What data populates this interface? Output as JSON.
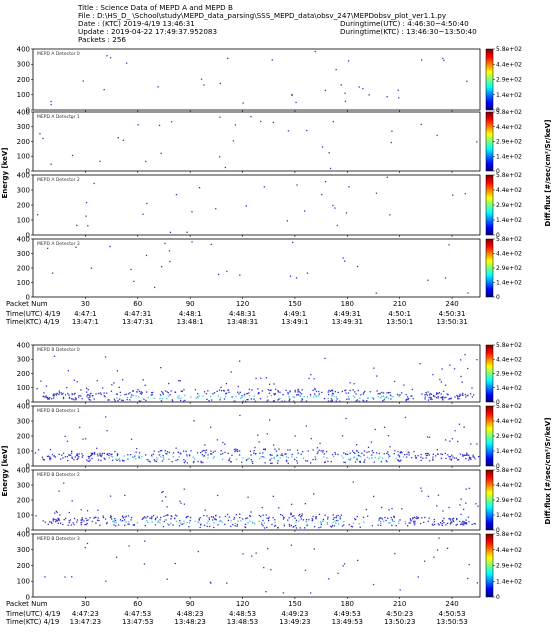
{
  "header": {
    "title": "Title : Science Data of MEPD A and MEPD B",
    "file": "File : D:\\HS_D_ \\School\\study\\MEPD_data_parsing\\SSS_MEPD_data\\obsv_247\\MEPDobsv_plot_ver1.1.py",
    "date": "Date : (KTC) 2019-4/19 13:46:31",
    "duringtime_utc": "Duringtime(UTC) : 4:46:30~4:50:40",
    "update": "Update : 2019-04-22 17:49:37.952083",
    "duringtime_ktc": "Duringtime(KTC) : 13:46:30~13:50:40",
    "packets": "Packets : 256"
  },
  "colors": {
    "colormap": [
      "#00007f",
      "#0000ff",
      "#007fff",
      "#00ffff",
      "#7fff7f",
      "#ffff00",
      "#ff7f00",
      "#ff0000",
      "#7f0000"
    ],
    "point": "#3030d0",
    "core": "#40c0e0"
  },
  "chart_data": {
    "type": "scatter",
    "ylabel": "Energy [keV]",
    "colorbar_label": "Diff.flux [#/sec/cm²/Sr/keV]",
    "colorbar_ticks": [
      "5.8e+02",
      "4.4e+02",
      "2.9e+02",
      "1.4e+02",
      "0"
    ],
    "yticks": [
      "400",
      "300",
      "200",
      "100",
      "0"
    ],
    "ylim": [
      0,
      400
    ],
    "xlim": [
      0,
      256
    ],
    "x_tick_values": [
      30,
      60,
      90,
      120,
      150,
      180,
      210,
      240
    ],
    "groups": [
      {
        "name": "MEPD A",
        "panels": [
          "MEPD A Detector 0",
          "MEPD A Detector 1",
          "MEPD A Detector 2",
          "MEPD A Detector 3"
        ],
        "axis_rows": [
          {
            "label": "Packet Num",
            "ticks": [
              "30",
              "60",
              "90",
              "120",
              "150",
              "180",
              "210",
              "240"
            ]
          },
          {
            "label": "Time(UTC) 4/19",
            "ticks": [
              "4:47:1",
              "4:47:31",
              "4:48:1",
              "4:48:31",
              "4:49:1",
              "4:49:31",
              "4:50:1",
              "4:50:31"
            ]
          },
          {
            "label": "Time(KTC) 4/19",
            "ticks": [
              "13:47:1",
              "13:47:31",
              "13:48:1",
              "13:48:31",
              "13:49:1",
              "13:49:31",
              "13:50:1",
              "13:50:31"
            ]
          }
        ],
        "activity": "sparse",
        "sample_points": [
          {
            "panel": 0,
            "x": 10,
            "y": 60
          },
          {
            "panel": 0,
            "x": 10,
            "y": 40
          },
          {
            "panel": 0,
            "x": 42,
            "y": 360
          },
          {
            "panel": 0,
            "x": 120,
            "y": 50
          },
          {
            "panel": 0,
            "x": 148,
            "y": 100
          },
          {
            "panel": 0,
            "x": 235,
            "y": 330
          },
          {
            "panel": 1,
            "x": 10,
            "y": 50
          },
          {
            "panel": 1,
            "x": 38,
            "y": 70
          },
          {
            "panel": 1,
            "x": 130,
            "y": 340
          },
          {
            "panel": 1,
            "x": 222,
            "y": 320
          },
          {
            "panel": 2,
            "x": 30,
            "y": 130
          },
          {
            "panel": 2,
            "x": 95,
            "y": 320
          },
          {
            "panel": 2,
            "x": 240,
            "y": 270
          },
          {
            "panel": 3,
            "x": 8,
            "y": 340
          },
          {
            "panel": 3,
            "x": 78,
            "y": 250
          }
        ]
      },
      {
        "name": "MEPD B",
        "panels": [
          "MEPD B Detector 0",
          "MEPD B Detector 1",
          "MEPD B Detector 2",
          "MEPD B Detector 3"
        ],
        "axis_rows": [
          {
            "label": "Packet Num",
            "ticks": [
              "30",
              "60",
              "90",
              "120",
              "150",
              "180",
              "210",
              "240"
            ]
          },
          {
            "label": "Time(UTC) 4/19",
            "ticks": [
              "4:47:23",
              "4:47:53",
              "4:48:23",
              "4:48:53",
              "4:49:23",
              "4:49:53",
              "4:50:23",
              "4:50:53"
            ]
          },
          {
            "label": "Time(KTC) 4/19",
            "ticks": [
              "13:47:23",
              "13:47:53",
              "13:48:23",
              "13:48:53",
              "13:49:23",
              "13:49:53",
              "13:50:23",
              "13:50:53"
            ]
          }
        ],
        "activity": "dense band near 20-100 keV in detectors 0-2, sparse in detector 3",
        "band_center_keV": [
          40,
          60,
          55,
          0
        ]
      }
    ]
  }
}
